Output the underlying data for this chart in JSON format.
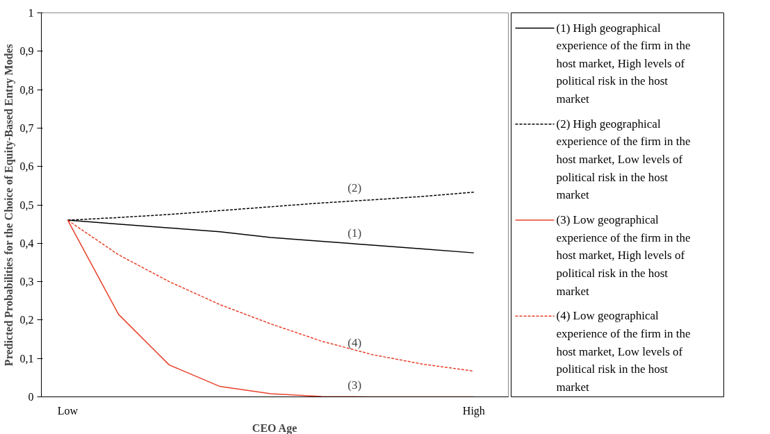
{
  "chart_data": {
    "type": "line",
    "xlabel": "CEO Age",
    "ylabel": "Predicted Probabilities for the Choice of Equity-Based Entry Modes",
    "categories": [
      "Low",
      null,
      null,
      null,
      null,
      null,
      null,
      null,
      "High"
    ],
    "ylim": [
      0,
      1
    ],
    "yticks": [
      0,
      {
        "value": 0.1,
        "label": "0,1"
      },
      {
        "value": 0.2,
        "label": "0,2"
      },
      {
        "value": 0.3,
        "label": "0,3"
      },
      {
        "value": 0.4,
        "label": "0,4"
      },
      {
        "value": 0.5,
        "label": "0,5"
      },
      {
        "value": 0.6,
        "label": "0,6"
      },
      {
        "value": 0.7,
        "label": "0,7"
      },
      {
        "value": 0.8,
        "label": "0,8"
      },
      {
        "value": 0.9,
        "label": "0,9"
      },
      1
    ],
    "grid": false,
    "legend": "right",
    "marker": "none",
    "series": [
      {
        "name": "(1) High geographical experience of the firm in the host market, High levels of political risk in the host market",
        "color": "#000000",
        "line_style": "solid",
        "values": [
          0.46,
          0.45,
          0.44,
          0.43,
          0.415,
          0.405,
          0.395,
          0.385,
          0.375
        ]
      },
      {
        "name": "(2) High geographical experience of the firm in the host market, Low levels of political risk in the host market",
        "color": "#000000",
        "line_style": "dashed",
        "values": [
          0.46,
          0.467,
          0.475,
          0.485,
          0.495,
          0.505,
          0.513,
          0.522,
          0.533
        ]
      },
      {
        "name": "(3) Low geographical experience of the firm in the host market, High levels of political risk in the host market",
        "color": "#e8402a",
        "line_style": "solid",
        "values": [
          0.46,
          0.215,
          0.083,
          0.027,
          0.008,
          0.001,
          0,
          0,
          0
        ]
      },
      {
        "name": "(4) Low geographical experience of the firm in the host market, Low levels of political risk in the host market",
        "color": "#e8402a",
        "line_style": "dashed",
        "values": [
          0.46,
          0.37,
          0.3,
          0.24,
          0.19,
          0.145,
          0.11,
          0.085,
          0.067
        ]
      }
    ],
    "annotations": [
      "(1)",
      "(2)",
      "(3)",
      "(4)"
    ]
  }
}
